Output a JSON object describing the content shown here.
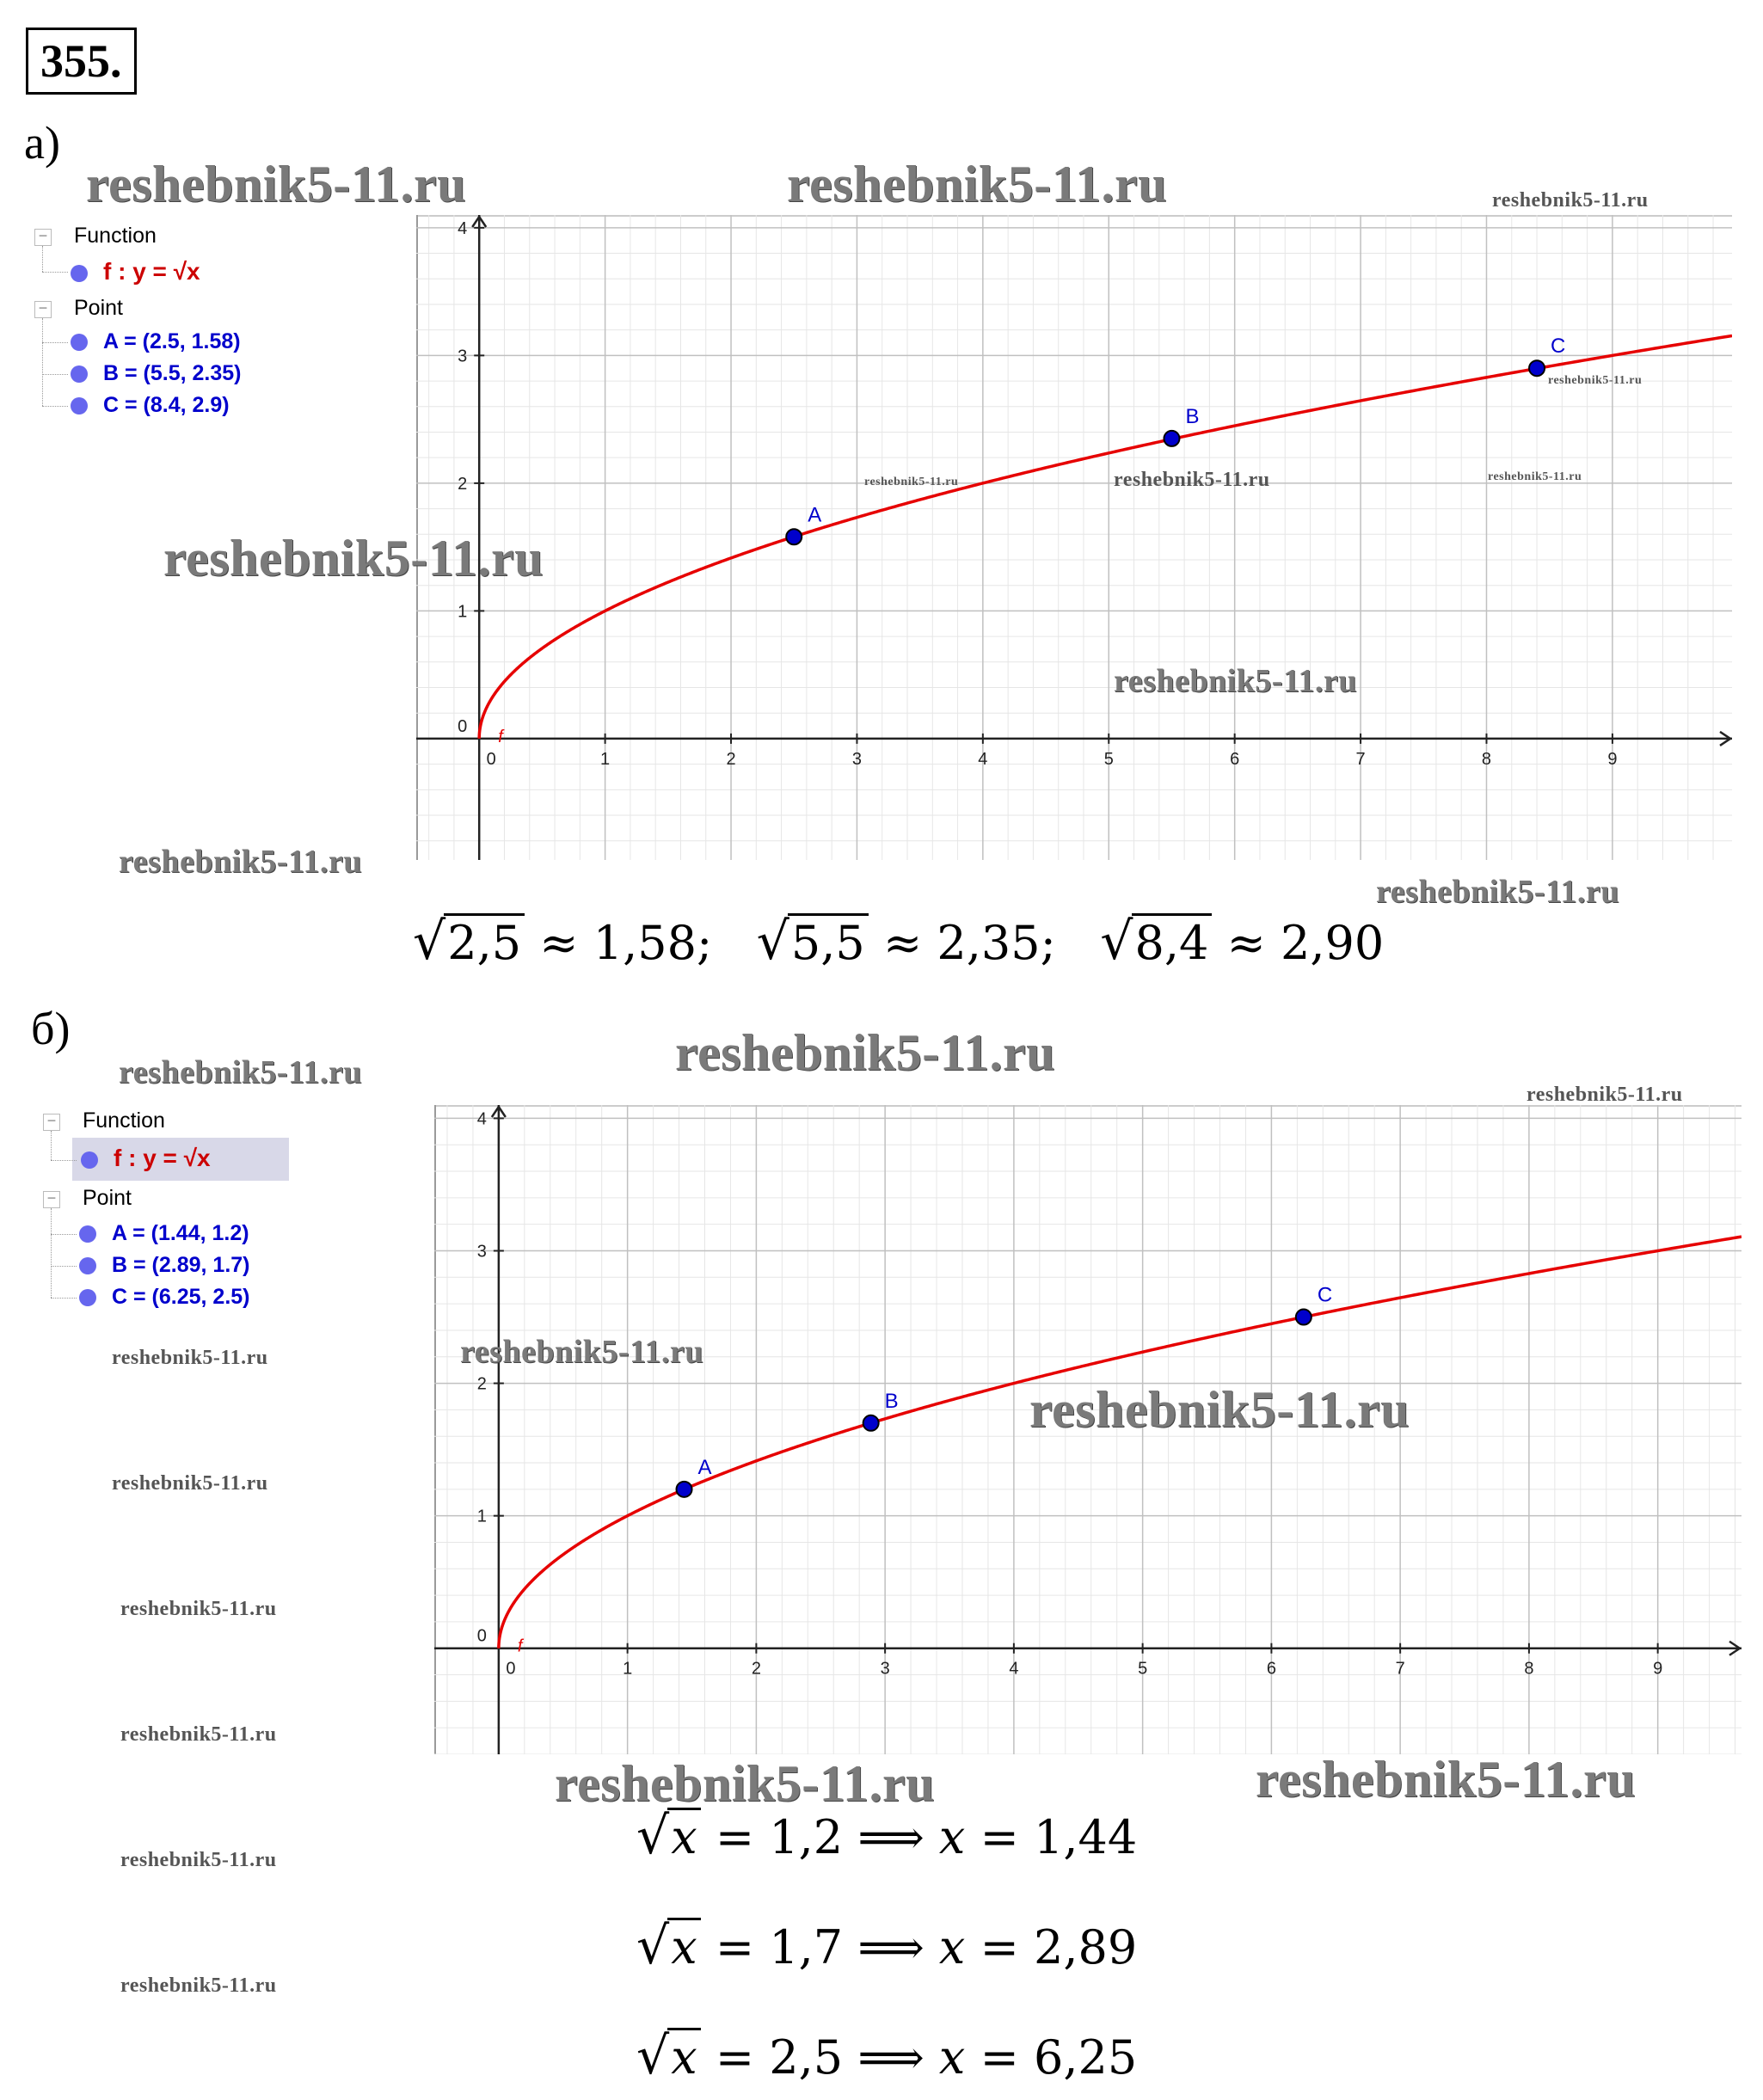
{
  "problem_number": "355.",
  "section_a": {
    "label": "а)",
    "algebra": {
      "function_group": "Function",
      "function_entry": "f : y = √x",
      "point_group": "Point",
      "points": [
        "A = (2.5, 1.58)",
        "B = (5.5, 2.35)",
        "C = (8.4, 2.9)"
      ]
    },
    "formula": {
      "items": [
        {
          "rad": "2,5",
          "rest": "≈ 1,58;"
        },
        {
          "rad": "5,5",
          "rest": "≈ 2,35;"
        },
        {
          "rad": "8,4",
          "rest": "≈ 2,90"
        }
      ]
    }
  },
  "section_b": {
    "label": "б)",
    "algebra": {
      "function_group": "Function",
      "function_entry": "f : y = √x",
      "point_group": "Point",
      "points": [
        "A = (1.44, 1.2)",
        "B = (2.89, 1.7)",
        "C = (6.25, 2.5)"
      ]
    },
    "formulas": [
      {
        "lhs": "x",
        "eq": "= 1,2 ⟹",
        "var": "x",
        "rhs": "= 1,44"
      },
      {
        "lhs": "x",
        "eq": "= 1,7 ⟹",
        "var": "x",
        "rhs": "= 2,89"
      },
      {
        "lhs": "x",
        "eq": "= 2,5 ⟹",
        "var": "x",
        "rhs": "= 6,25"
      }
    ]
  },
  "watermark": "reshebnik5-11.ru",
  "colors": {
    "curve": "#e60000",
    "point": "#0000cc",
    "grid_major": "#c0c0c0",
    "grid_minor": "#e6e6e6"
  },
  "chart_data": [
    {
      "type": "line",
      "function": "y = sqrt(x)",
      "curve_label": "f",
      "xlim": [
        -0.5,
        9.95
      ],
      "ylim": [
        -0.95,
        4.1
      ],
      "x_ticks": [
        "0",
        "1",
        "2",
        "3",
        "4",
        "5",
        "6",
        "7",
        "8",
        "9"
      ],
      "y_ticks": [
        "0",
        "1",
        "2",
        "3",
        "4"
      ],
      "grid": true,
      "points": [
        {
          "name": "A",
          "x": 2.5,
          "y": 1.58
        },
        {
          "name": "B",
          "x": 5.5,
          "y": 2.35
        },
        {
          "name": "C",
          "x": 8.4,
          "y": 2.9
        }
      ]
    },
    {
      "type": "line",
      "function": "y = sqrt(x)",
      "curve_label": "f",
      "xlim": [
        -0.5,
        9.65
      ],
      "ylim": [
        -0.8,
        4.1
      ],
      "x_ticks": [
        "0",
        "1",
        "2",
        "3",
        "4",
        "5",
        "6",
        "7",
        "8",
        "9"
      ],
      "y_ticks": [
        "0",
        "1",
        "2",
        "3",
        "4"
      ],
      "grid": true,
      "points": [
        {
          "name": "A",
          "x": 1.44,
          "y": 1.2
        },
        {
          "name": "B",
          "x": 2.89,
          "y": 1.7
        },
        {
          "name": "C",
          "x": 6.25,
          "y": 2.5
        }
      ]
    }
  ]
}
